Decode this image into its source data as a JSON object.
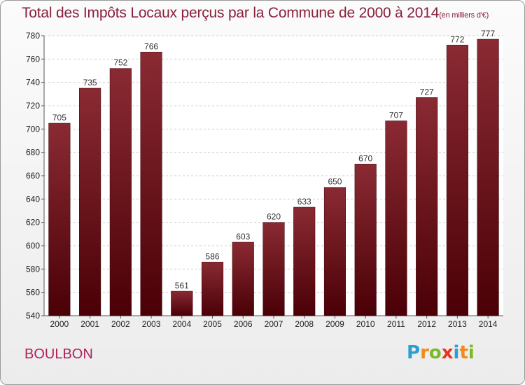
{
  "title": {
    "main": "Total des Impôts Locaux perçus par la Commune de 2000 à 2014",
    "unit": "(en milliers d'€)"
  },
  "commune": "BOULBON",
  "logo": {
    "letters": [
      "P",
      "r",
      "o",
      "x",
      "i",
      "t",
      "i"
    ],
    "colors": [
      "#2a9fd6",
      "#f08a1c",
      "#7cb928",
      "#e8331f",
      "#2a9fd6",
      "#f08a1c",
      "#7cb928"
    ]
  },
  "chart_data": {
    "type": "bar",
    "categories": [
      "2000",
      "2001",
      "2002",
      "2003",
      "2004",
      "2005",
      "2006",
      "2007",
      "2008",
      "2009",
      "2010",
      "2011",
      "2012",
      "2013",
      "2014"
    ],
    "values": [
      705,
      735,
      752,
      766,
      561,
      586,
      603,
      620,
      633,
      650,
      670,
      707,
      727,
      772,
      777
    ],
    "ylim": [
      540,
      780
    ],
    "yticks": [
      540,
      560,
      580,
      600,
      620,
      640,
      660,
      680,
      700,
      720,
      740,
      760,
      780
    ],
    "grid": true,
    "bar_color": "#7a1320"
  }
}
